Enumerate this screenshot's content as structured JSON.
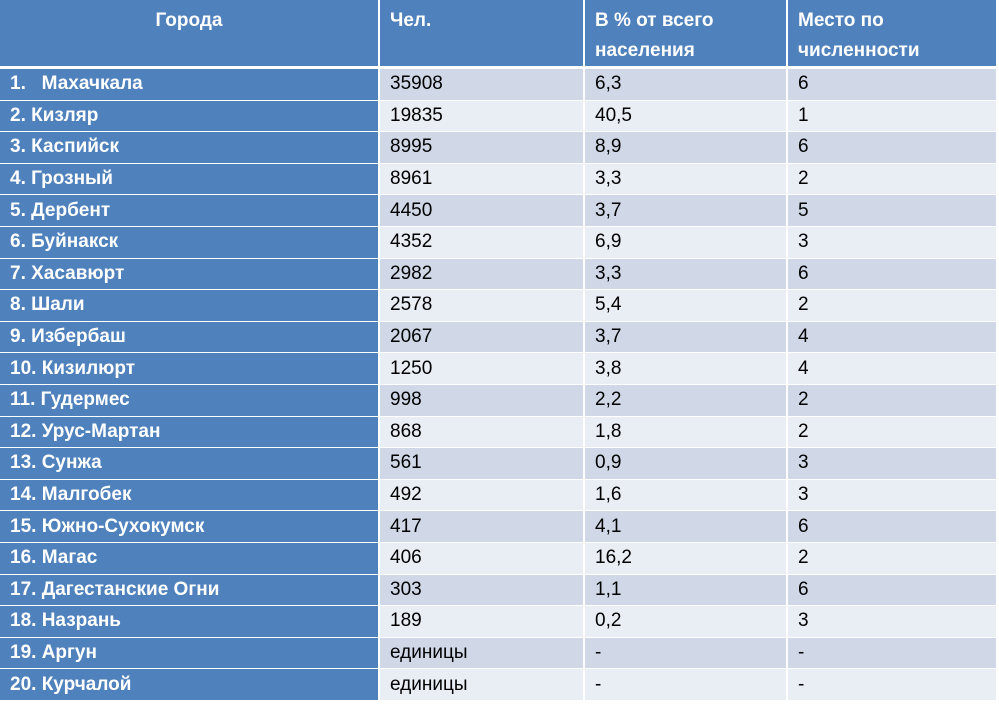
{
  "table": {
    "headers": {
      "city": "Города",
      "people": "Чел.",
      "percent": "В % от всего населения",
      "rank": "Место по численности"
    },
    "rows": [
      {
        "city": "1.   Махачкала",
        "people": "35908",
        "percent": "6,3",
        "rank": "6"
      },
      {
        "city": "2. Кизляр",
        "people": "19835",
        "percent": "40,5",
        "rank": "1"
      },
      {
        "city": "3. Каспийск",
        "people": "8995",
        "percent": "8,9",
        "rank": "6"
      },
      {
        "city": "4. Грозный",
        "people": "8961",
        "percent": "3,3",
        "rank": "2"
      },
      {
        "city": "5. Дербент",
        "people": "4450",
        "percent": "3,7",
        "rank": "5"
      },
      {
        "city": "6. Буйнакск",
        "people": "4352",
        "percent": "6,9",
        "rank": "3"
      },
      {
        "city": "7. Хасавюрт",
        "people": "2982",
        "percent": "3,3",
        "rank": "6"
      },
      {
        "city": "8. Шали",
        "people": "2578",
        "percent": "5,4",
        "rank": "2"
      },
      {
        "city": "9. Избербаш",
        "people": "2067",
        "percent": "3,7",
        "rank": "4"
      },
      {
        "city": "10. Кизилюрт",
        "people": "1250",
        "percent": "3,8",
        "rank": "4"
      },
      {
        "city": "11. Гудермес",
        "people": "998",
        "percent": "2,2",
        "rank": "2"
      },
      {
        "city": "12. Урус-Мартан",
        "people": "868",
        "percent": "1,8",
        "rank": "2"
      },
      {
        "city": "13. Сунжа",
        "people": "561",
        "percent": "0,9",
        "rank": "3"
      },
      {
        "city": "14. Малгобек",
        "people": "492",
        "percent": "1,6",
        "rank": "3"
      },
      {
        "city": "15. Южно-Сухокумск",
        "people": "417",
        "percent": "4,1",
        "rank": "6"
      },
      {
        "city": "16. Магас",
        "people": "406",
        "percent": "16,2",
        "rank": "2"
      },
      {
        "city": "17. Дагестанские Огни",
        "people": "303",
        "percent": "1,1",
        "rank": "6"
      },
      {
        "city": "18. Назрань",
        "people": "189",
        "percent": "0,2",
        "rank": "3"
      },
      {
        "city": "19. Аргун",
        "people": "единицы",
        "percent": "-",
        "rank": "-"
      },
      {
        "city": "20. Курчалой",
        "people": "единицы",
        "percent": "-",
        "rank": "-"
      }
    ]
  },
  "colors": {
    "header_bg": "#4f81bd",
    "city_bg": "#4f81bd",
    "row_odd": "#d0d8e8",
    "row_even": "#e9edf4"
  }
}
